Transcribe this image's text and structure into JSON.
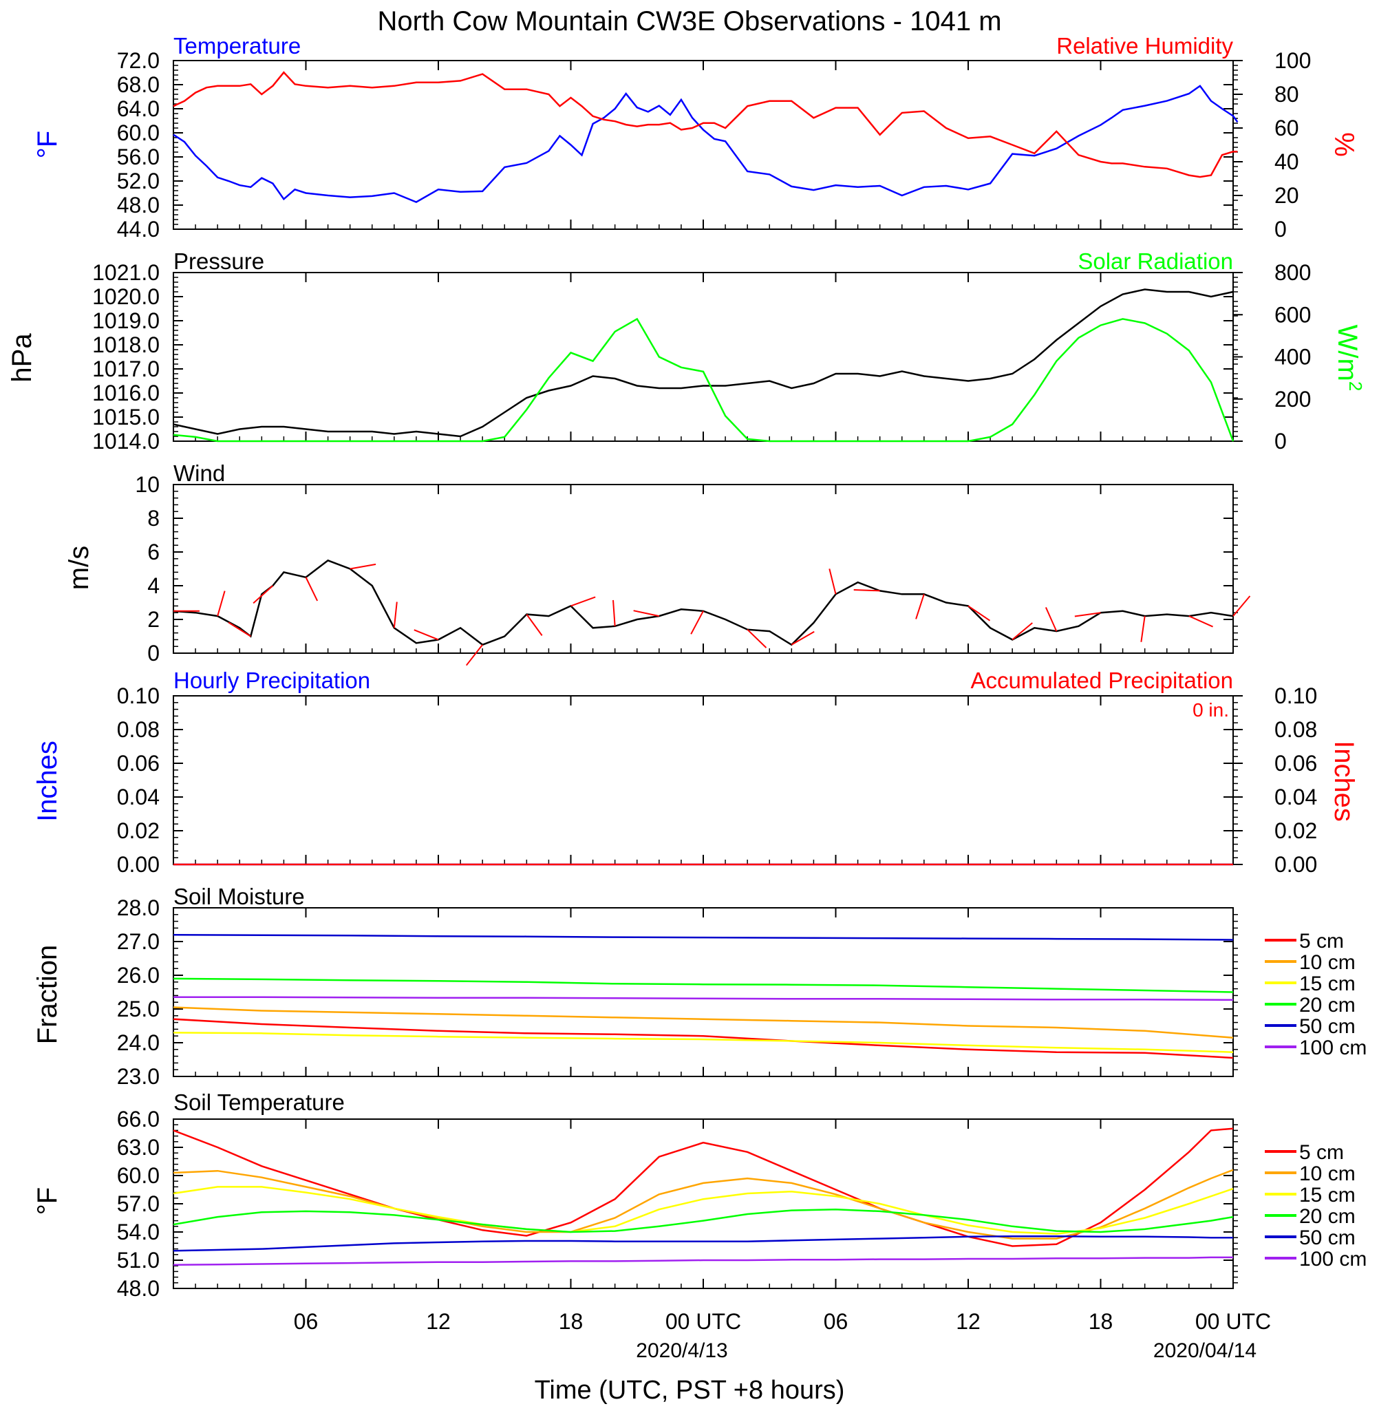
{
  "figure": {
    "title": "North Cow Mountain CW3E Observations - 1041 m",
    "xlabel": "Time (UTC, PST +8 hours)",
    "x_ticks": [
      "06",
      "12",
      "18",
      "00 UTC",
      "06",
      "12",
      "18",
      "00 UTC"
    ],
    "date_labels": [
      "2020/4/13",
      "2020/04/14"
    ],
    "colors": {
      "blue": "#0000ff",
      "red": "#ff0000",
      "green": "#00ff00",
      "black": "#000000",
      "orange": "#ffa500",
      "yellow": "#ffff00",
      "navy": "#0000cc",
      "purple": "#a020f0"
    }
  },
  "chart_data": [
    {
      "type": "line",
      "title": "Temperature",
      "title_right": "Relative Humidity",
      "ylabel": "°F",
      "y2label": "%",
      "ylim": [
        44,
        72
      ],
      "y2lim": [
        0,
        100
      ],
      "yticks": [
        "44.0",
        "48.0",
        "52.0",
        "56.0",
        "60.0",
        "64.0",
        "68.0",
        "72.0"
      ],
      "y2ticks": [
        "0",
        "20",
        "40",
        "60",
        "80",
        "100"
      ],
      "hours": [
        0,
        0.5,
        1,
        1.5,
        2,
        2.5,
        3,
        3.5,
        4,
        4.5,
        5,
        5.5,
        6,
        7,
        8,
        9,
        10,
        11,
        12,
        13,
        14,
        15,
        16,
        17,
        17.5,
        18,
        18.5,
        19,
        19.5,
        20,
        20.5,
        21,
        21.5,
        22,
        22.5,
        23,
        23.5,
        24,
        24.5,
        25,
        26,
        27,
        28,
        29,
        30,
        31,
        32,
        33,
        34,
        35,
        36,
        37,
        38,
        39,
        40,
        41,
        42,
        42.5,
        43,
        44,
        45,
        46,
        46.5,
        47,
        47.5,
        48,
        48.2
      ],
      "series": [
        {
          "name": "Temperature",
          "axis": "left",
          "color": "#0000ff",
          "values": [
            59.7,
            58.5,
            56.2,
            54.5,
            52.6,
            52.0,
            51.3,
            51.0,
            52.5,
            51.6,
            49.0,
            50.6,
            50.0,
            49.6,
            49.3,
            49.5,
            50.0,
            48.5,
            50.6,
            50.2,
            50.3,
            54.3,
            55.0,
            57.0,
            59.5,
            58.0,
            56.3,
            61.5,
            62.5,
            64.0,
            66.5,
            64.2,
            63.5,
            64.5,
            63.0,
            65.5,
            62.5,
            60.5,
            59.0,
            58.6,
            53.6,
            53.1,
            51.1,
            50.5,
            51.3,
            51.0,
            51.2,
            49.6,
            51.0,
            51.2,
            50.6,
            51.6,
            56.5,
            56.2,
            57.4,
            59.5,
            61.3,
            62.5,
            63.8,
            64.5,
            65.3,
            66.5,
            67.8,
            65.3,
            64.0,
            62.8,
            61.8
          ]
        },
        {
          "name": "Relative Humidity",
          "axis": "right",
          "color": "#ff0000",
          "values": [
            73,
            76,
            81,
            84,
            85,
            85,
            85,
            86,
            80,
            85,
            93,
            86,
            85,
            84,
            85,
            84,
            85,
            87,
            87,
            88,
            92,
            83,
            83,
            80,
            73,
            78,
            73,
            67,
            65,
            64,
            62,
            61,
            62,
            62,
            63,
            59,
            60,
            63,
            63,
            60,
            73,
            76,
            76,
            66,
            72,
            72,
            56,
            69,
            70,
            60,
            54,
            55,
            50,
            45,
            58,
            44,
            40,
            39,
            39,
            37,
            36,
            32,
            31,
            32,
            44,
            46,
            46
          ]
        }
      ]
    },
    {
      "type": "line",
      "title": "Pressure",
      "title_right": "Solar Radiation",
      "ylabel": "hPa",
      "y2label": "W/m",
      "y2label_sup": "2",
      "ylim": [
        1014.0,
        1021.0
      ],
      "y2lim": [
        0,
        800
      ],
      "yticks": [
        "1014.0",
        "1015.0",
        "1016.0",
        "1017.0",
        "1018.0",
        "1019.0",
        "1020.0",
        "1021.0"
      ],
      "y2ticks": [
        "0",
        "200",
        "400",
        "600",
        "800"
      ],
      "hours": [
        0,
        1,
        2,
        3,
        4,
        5,
        6,
        7,
        8,
        9,
        10,
        11,
        12,
        13,
        14,
        15,
        16,
        17,
        18,
        19,
        20,
        21,
        22,
        23,
        24,
        25,
        26,
        27,
        28,
        29,
        30,
        31,
        32,
        33,
        34,
        35,
        36,
        37,
        38,
        39,
        40,
        41,
        42,
        43,
        44,
        45,
        46,
        47,
        48
      ],
      "series": [
        {
          "name": "Pressure",
          "axis": "left",
          "color": "#000000",
          "values": [
            1014.7,
            1014.5,
            1014.3,
            1014.5,
            1014.6,
            1014.6,
            1014.5,
            1014.4,
            1014.4,
            1014.4,
            1014.3,
            1014.4,
            1014.3,
            1014.2,
            1014.6,
            1015.2,
            1015.8,
            1016.1,
            1016.3,
            1016.7,
            1016.6,
            1016.3,
            1016.2,
            1016.2,
            1016.3,
            1016.3,
            1016.4,
            1016.5,
            1016.2,
            1016.4,
            1016.8,
            1016.8,
            1016.7,
            1016.9,
            1016.7,
            1016.6,
            1016.5,
            1016.6,
            1016.8,
            1017.4,
            1018.2,
            1018.9,
            1019.6,
            1020.1,
            1020.3,
            1020.2,
            1020.2,
            1020.0,
            1020.2
          ]
        },
        {
          "name": "Solar Radiation",
          "axis": "right",
          "color": "#00ff00",
          "values": [
            30,
            20,
            0,
            0,
            0,
            0,
            0,
            0,
            0,
            0,
            0,
            0,
            0,
            0,
            0,
            20,
            150,
            300,
            420,
            380,
            520,
            580,
            400,
            350,
            330,
            120,
            10,
            0,
            0,
            0,
            0,
            0,
            0,
            0,
            0,
            0,
            0,
            20,
            80,
            220,
            380,
            490,
            550,
            580,
            560,
            510,
            430,
            280,
            0
          ]
        }
      ]
    },
    {
      "type": "line",
      "title": "Wind",
      "ylabel": "m/s",
      "ylim": [
        0,
        10
      ],
      "yticks": [
        "0",
        "2",
        "4",
        "6",
        "8",
        "10"
      ],
      "hours": [
        0,
        1,
        2,
        3,
        3.5,
        4,
        4.5,
        5,
        6,
        7,
        8,
        9,
        10,
        11,
        12,
        13,
        14,
        15,
        16,
        17,
        18,
        19,
        20,
        21,
        22,
        23,
        24,
        25,
        26,
        27,
        28,
        29,
        30,
        31,
        32,
        33,
        34,
        35,
        36,
        37,
        38,
        39,
        40,
        41,
        42,
        43,
        44,
        45,
        46,
        47,
        48
      ],
      "series": [
        {
          "name": "Wind speed",
          "axis": "left",
          "color": "#000000",
          "values": [
            2.5,
            2.4,
            2.2,
            1.5,
            1.0,
            3.5,
            4.0,
            4.8,
            4.5,
            5.5,
            5.0,
            4.0,
            1.5,
            0.6,
            0.8,
            1.5,
            0.5,
            1.0,
            2.3,
            2.2,
            2.8,
            1.5,
            1.6,
            2.0,
            2.2,
            2.6,
            2.5,
            2.0,
            1.4,
            1.3,
            0.5,
            1.8,
            3.5,
            4.2,
            3.7,
            3.5,
            3.5,
            3.0,
            2.8,
            1.5,
            0.8,
            1.5,
            1.3,
            1.6,
            2.4,
            2.5,
            2.2,
            2.3,
            2.2,
            2.4,
            2.2
          ]
        }
      ],
      "barb_color": "#ff0000"
    },
    {
      "type": "line",
      "title": "Hourly Precipitation",
      "title_right": "Accumulated Precipitation",
      "annotation": "0 in.",
      "ylabel": "Inches",
      "y2label": "Inches",
      "ylim": [
        0,
        0.1
      ],
      "y2lim": [
        0,
        0.1
      ],
      "yticks": [
        "0.00",
        "0.02",
        "0.04",
        "0.06",
        "0.08",
        "0.10"
      ],
      "y2ticks": [
        "0.00",
        "0.02",
        "0.04",
        "0.06",
        "0.08",
        "0.10"
      ],
      "hours": [
        0,
        48
      ],
      "series": [
        {
          "name": "Hourly Precipitation",
          "axis": "left",
          "color": "#0000ff",
          "values": [
            0,
            0
          ]
        },
        {
          "name": "Accumulated Precipitation",
          "axis": "right",
          "color": "#ff0000",
          "values": [
            0,
            0
          ]
        }
      ]
    },
    {
      "type": "line",
      "title": "Soil Moisture",
      "ylabel": "Fraction",
      "ylim": [
        23.0,
        28.0
      ],
      "yticks": [
        "23.0",
        "24.0",
        "25.0",
        "26.0",
        "27.0",
        "28.0"
      ],
      "hours": [
        0,
        4,
        8,
        12,
        16,
        20,
        24,
        28,
        32,
        36,
        40,
        44,
        48
      ],
      "series": [
        {
          "name": "5 cm",
          "color": "#ff0000",
          "values": [
            24.7,
            24.55,
            24.45,
            24.35,
            24.28,
            24.25,
            24.2,
            24.05,
            23.92,
            23.8,
            23.72,
            23.7,
            23.55
          ]
        },
        {
          "name": "10 cm",
          "color": "#ffa500",
          "values": [
            25.05,
            24.95,
            24.9,
            24.85,
            24.8,
            24.75,
            24.7,
            24.65,
            24.6,
            24.5,
            24.45,
            24.35,
            24.15
          ]
        },
        {
          "name": "15 cm",
          "color": "#ffff00",
          "values": [
            24.3,
            24.28,
            24.22,
            24.18,
            24.15,
            24.12,
            24.1,
            24.05,
            24.0,
            23.92,
            23.85,
            23.8,
            23.72
          ]
        },
        {
          "name": "20 cm",
          "color": "#00ff00",
          "values": [
            25.9,
            25.88,
            25.85,
            25.83,
            25.8,
            25.75,
            25.73,
            25.72,
            25.7,
            25.65,
            25.6,
            25.55,
            25.5
          ]
        },
        {
          "name": "50 cm",
          "color": "#0000cc",
          "values": [
            27.2,
            27.19,
            27.18,
            27.16,
            27.15,
            27.13,
            27.12,
            27.11,
            27.1,
            27.09,
            27.08,
            27.07,
            27.05
          ]
        },
        {
          "name": "100 cm",
          "color": "#a020f0",
          "values": [
            25.35,
            25.35,
            25.34,
            25.33,
            25.33,
            25.32,
            25.31,
            25.3,
            25.3,
            25.29,
            25.28,
            25.28,
            25.27
          ]
        }
      ]
    },
    {
      "type": "line",
      "title": "Soil Temperature",
      "ylabel": "°F",
      "ylim": [
        48.0,
        66.0
      ],
      "yticks": [
        "48.0",
        "51.0",
        "54.0",
        "57.0",
        "60.0",
        "63.0",
        "66.0"
      ],
      "hours": [
        0,
        2,
        4,
        6,
        8,
        10,
        12,
        14,
        16,
        18,
        20,
        22,
        24,
        26,
        28,
        30,
        32,
        34,
        36,
        38,
        40,
        42,
        44,
        46,
        47,
        48
      ],
      "series": [
        {
          "name": "5 cm",
          "color": "#ff0000",
          "values": [
            64.8,
            63.0,
            61.0,
            59.5,
            58.0,
            56.5,
            55.3,
            54.2,
            53.6,
            55.0,
            57.5,
            62.0,
            63.5,
            62.5,
            60.5,
            58.5,
            56.5,
            55.0,
            53.5,
            52.5,
            52.7,
            55.0,
            58.5,
            62.5,
            64.8,
            65.0
          ]
        },
        {
          "name": "10 cm",
          "color": "#ffa500",
          "values": [
            60.3,
            60.5,
            59.8,
            58.8,
            57.8,
            56.5,
            55.5,
            54.6,
            54.0,
            54.0,
            55.5,
            58.0,
            59.2,
            59.7,
            59.2,
            58.0,
            56.5,
            55.0,
            54.0,
            53.3,
            53.3,
            54.5,
            56.5,
            58.7,
            59.7,
            60.6
          ]
        },
        {
          "name": "15 cm",
          "color": "#ffff00",
          "values": [
            58.1,
            58.8,
            58.8,
            58.2,
            57.5,
            56.5,
            55.6,
            54.8,
            54.3,
            54.0,
            54.6,
            56.4,
            57.5,
            58.1,
            58.3,
            57.8,
            57.0,
            55.8,
            54.7,
            54.0,
            53.8,
            54.4,
            55.5,
            57.0,
            57.8,
            58.6
          ]
        },
        {
          "name": "20 cm",
          "color": "#00ff00",
          "values": [
            54.8,
            55.6,
            56.1,
            56.2,
            56.1,
            55.8,
            55.3,
            54.8,
            54.3,
            54.0,
            54.1,
            54.6,
            55.2,
            55.9,
            56.3,
            56.4,
            56.2,
            55.8,
            55.3,
            54.6,
            54.1,
            54.0,
            54.3,
            54.9,
            55.2,
            55.6
          ]
        },
        {
          "name": "50 cm",
          "color": "#0000cc",
          "values": [
            52.0,
            52.1,
            52.2,
            52.4,
            52.6,
            52.8,
            52.9,
            53.0,
            53.05,
            53.05,
            53.0,
            53.0,
            53.0,
            53.0,
            53.1,
            53.2,
            53.3,
            53.4,
            53.5,
            53.55,
            53.55,
            53.5,
            53.5,
            53.45,
            53.4,
            53.4
          ]
        },
        {
          "name": "100 cm",
          "color": "#a020f0",
          "values": [
            50.5,
            50.55,
            50.6,
            50.65,
            50.7,
            50.75,
            50.8,
            50.8,
            50.85,
            50.9,
            50.9,
            50.95,
            51.0,
            51.0,
            51.05,
            51.05,
            51.1,
            51.1,
            51.15,
            51.15,
            51.2,
            51.2,
            51.25,
            51.25,
            51.3,
            51.3
          ]
        }
      ]
    }
  ]
}
